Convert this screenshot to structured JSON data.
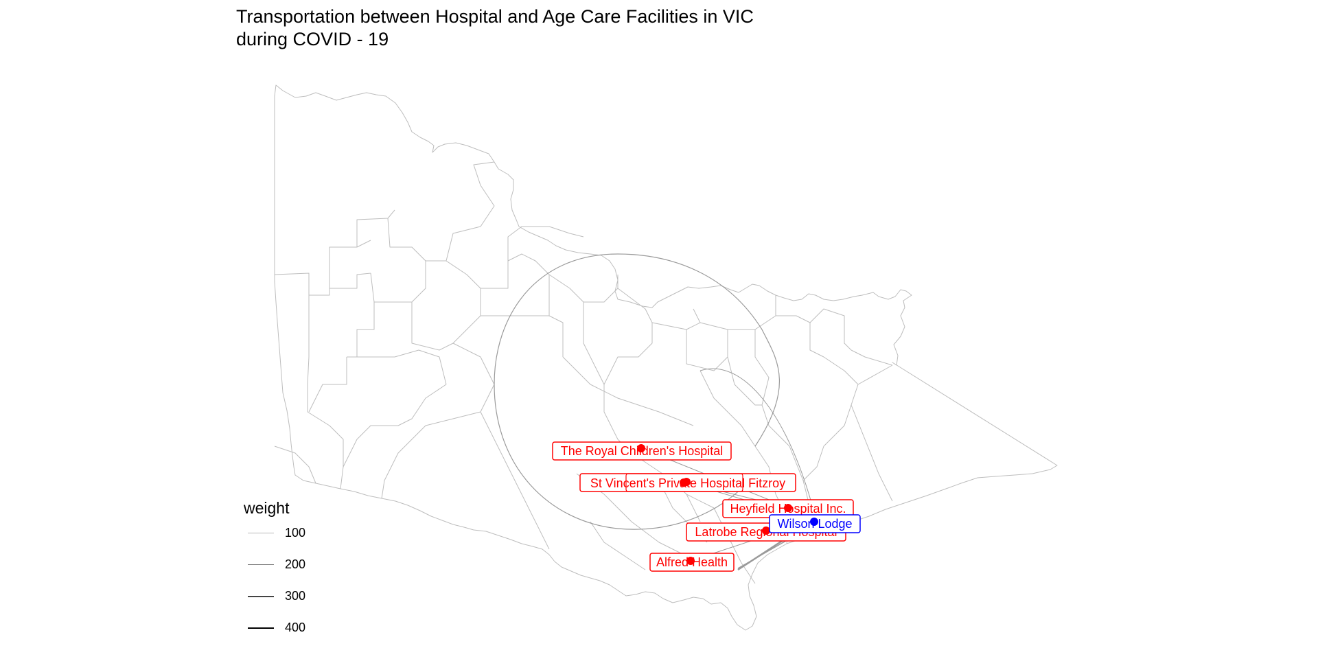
{
  "title": {
    "line1": "Transportation between Hospital and Age Care Facilities in VIC",
    "line2": "during COVID - 19"
  },
  "colors": {
    "hospital": "#ff0000",
    "age_care": "#0000ff",
    "boundary": "#bdbdbd",
    "edge": "#9a9a9a"
  },
  "legend": {
    "title": "weight",
    "items": [
      {
        "label": "100",
        "weight": 100
      },
      {
        "label": "200",
        "weight": 200
      },
      {
        "label": "300",
        "weight": 300
      },
      {
        "label": "400",
        "weight": 400
      }
    ]
  },
  "nodes": [
    {
      "name": "The Royal Children's Hospital",
      "type": "hospital"
    },
    {
      "name": "St Vincent's Private Hospital Fitzroy",
      "type": "hospital"
    },
    {
      "name": "Heyfield Hospital Inc.",
      "type": "hospital"
    },
    {
      "name": "Latrobe Regional Hospital",
      "type": "hospital"
    },
    {
      "name": "Alfred Health",
      "type": "hospital"
    },
    {
      "name": "Wilson Lodge",
      "type": "age_care"
    }
  ]
}
